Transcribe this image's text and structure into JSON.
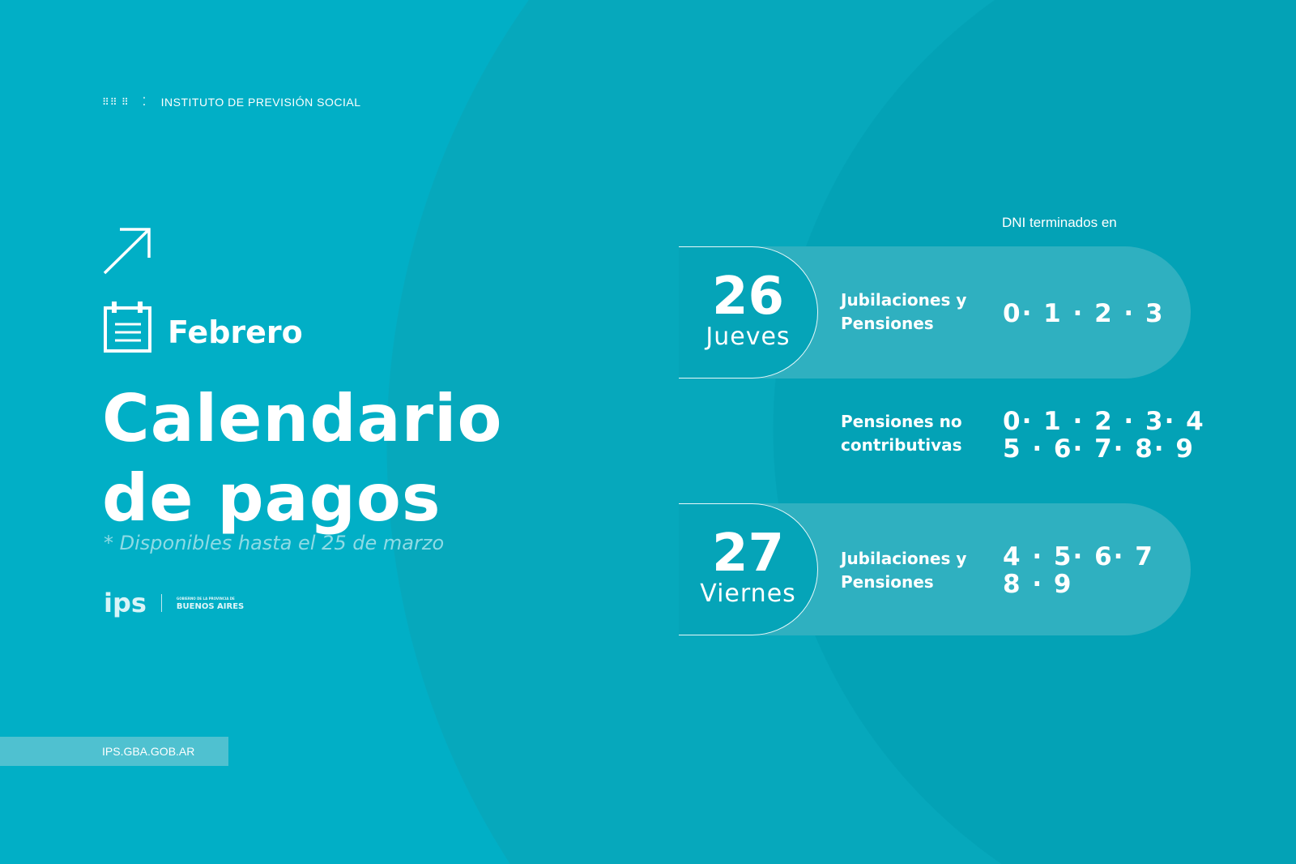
{
  "header": {
    "org": "INSTITUTO DE PREVISIÓN SOCIAL"
  },
  "month": "Febrero",
  "title_line1": "Calendario",
  "title_line2": "de pagos",
  "note": "* Disponibles hasta el 25 de marzo",
  "logos": {
    "ips": "ips",
    "ba_small": "GOBIERNO DE LA PROVINCIA DE",
    "ba": "BUENOS AIRES"
  },
  "url": "IPS.GBA.GOB.AR",
  "dni_label": "DNI terminados en",
  "schedule": [
    {
      "day": "26",
      "weekday": "Jueves",
      "category": "Jubilaciones y Pensiones",
      "digits": "0· 1 · 2 · 3"
    },
    {
      "category": "Pensiones no contributivas",
      "digits": "0· 1 · 2 · 3· 4\n5 · 6· 7· 8· 9"
    },
    {
      "day": "27",
      "weekday": "Viernes",
      "category": "Jubilaciones y Pensiones",
      "digits": "4 · 5· 6· 7\n8 · 9"
    }
  ],
  "colors": {
    "background": "#01afc6",
    "circle": "#06a8bc",
    "pill": "#2fb0c0"
  }
}
